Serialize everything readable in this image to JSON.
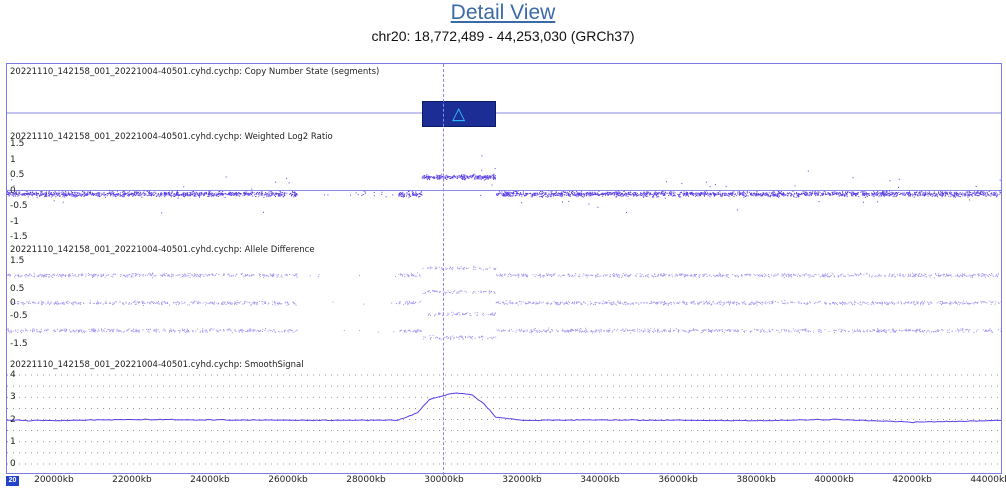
{
  "header": {
    "title": "Detail View",
    "region": "chr20: 18,772,489 - 44,253,030 (GRCh37)"
  },
  "colors": {
    "data": "#5a3ee6",
    "frame": "#7b7be0",
    "segment": "#1c2e96",
    "segment_icon": "#29c8ff"
  },
  "tracks": {
    "copy_number": {
      "label": "20221110_142158_001_20221004-40501.cyhd.cychp: Copy Number State (segments)",
      "segment_icon": "△",
      "segment_icon_name": "gain-triangle-icon"
    },
    "log2": {
      "label": "20221110_142158_001_20221004-40501.cyhd.cychp: Weighted Log2 Ratio",
      "ticks": [
        "1.5",
        "1",
        "0.5",
        "0",
        "-0.5",
        "-1",
        "-1.5"
      ]
    },
    "allele": {
      "label": "20221110_142158_001_20221004-40501.cyhd.cychp: Allele Difference",
      "ticks": [
        "1.5",
        "0.5",
        "0",
        "-0.5",
        "-1.5"
      ]
    },
    "smooth": {
      "label": "20221110_142158_001_20221004-40501.cyhd.cychp: SmoothSignal",
      "ticks": [
        "4",
        "3",
        "2",
        "1",
        "0"
      ]
    }
  },
  "x_axis": {
    "chromosome": "20",
    "labels": [
      "20000kb",
      "22000kb",
      "24000kb",
      "26000kb",
      "28000kb",
      "30000kb",
      "32000kb",
      "34000kb",
      "36000kb",
      "38000kb",
      "40000kb",
      "42000kb",
      "44000kb"
    ]
  },
  "chart_data": {
    "type": "scatter",
    "x_range_kb": [
      18772,
      44253
    ],
    "gain_segment_kb": [
      29400,
      31300
    ],
    "cursor_kb": 29950,
    "no_data_kb": [
      [
        26200,
        28800
      ]
    ],
    "log2": {
      "ylim": [
        -1.5,
        1.5
      ],
      "baseline": -0.1,
      "gain_level": 0.45
    },
    "allele_difference": {
      "ylim": [
        -1.5,
        1.5
      ],
      "normal_bands": [
        1,
        0,
        -1
      ],
      "gain_bands": [
        1.25,
        0.4,
        -0.4,
        -1.25
      ]
    },
    "smooth_signal": {
      "ylim": [
        0,
        4
      ],
      "points": [
        [
          18772,
          1.97
        ],
        [
          20000,
          1.95
        ],
        [
          22000,
          2.0
        ],
        [
          24000,
          1.98
        ],
        [
          26000,
          1.97
        ],
        [
          28800,
          1.97
        ],
        [
          29300,
          2.3
        ],
        [
          29600,
          2.9
        ],
        [
          30000,
          3.1
        ],
        [
          30300,
          3.2
        ],
        [
          30700,
          3.1
        ],
        [
          31000,
          2.7
        ],
        [
          31300,
          2.1
        ],
        [
          32000,
          1.96
        ],
        [
          34000,
          1.98
        ],
        [
          36000,
          1.97
        ],
        [
          38000,
          1.95
        ],
        [
          40000,
          2.0
        ],
        [
          42000,
          1.88
        ],
        [
          44253,
          1.96
        ]
      ]
    }
  }
}
